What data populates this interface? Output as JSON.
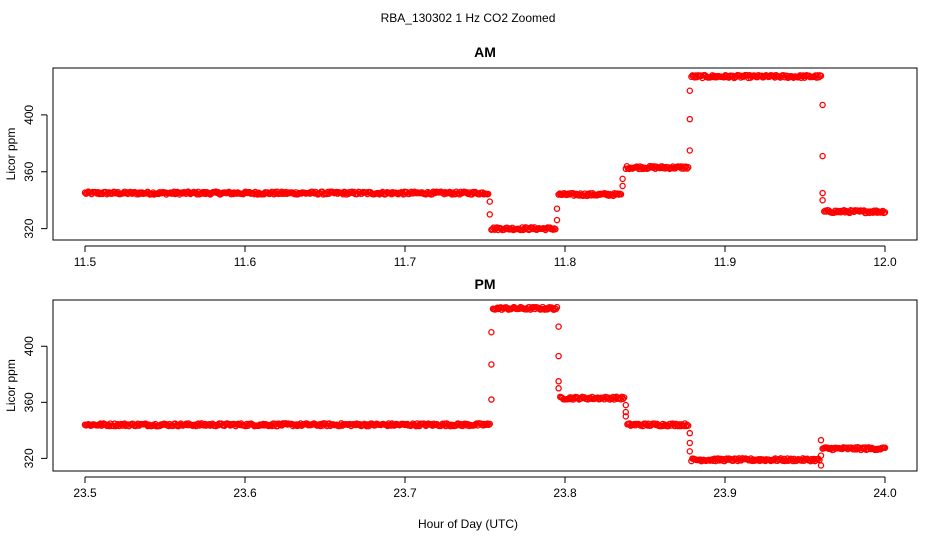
{
  "figure": {
    "title": "RBA_130302  1 Hz CO2 Zoomed",
    "xlabel": "Hour of Day (UTC)"
  },
  "chart_data": [
    {
      "type": "scatter",
      "title": "AM",
      "ylabel": "Licor ppm",
      "xlim": [
        11.48,
        12.02
      ],
      "ylim": [
        312,
        433
      ],
      "xticks": [
        11.5,
        11.6,
        11.7,
        11.8,
        11.9,
        12.0
      ],
      "xtick_labels": [
        "11.5",
        "11.6",
        "11.7",
        "11.8",
        "11.9",
        "12.0"
      ],
      "yticks": [
        320,
        360,
        400
      ],
      "ytick_labels": [
        "320",
        "360",
        "400"
      ],
      "color": "#ff0000",
      "marker": "open-circle",
      "grid": false,
      "segments": [
        {
          "x_start": 11.5,
          "x_end": 11.752,
          "y": 345
        },
        {
          "x_start": 11.754,
          "x_end": 11.794,
          "y": 320
        },
        {
          "x_start": 11.796,
          "x_end": 11.835,
          "y": 344
        },
        {
          "x_start": 11.838,
          "x_end": 11.877,
          "y": 363
        },
        {
          "x_start": 11.879,
          "x_end": 11.96,
          "y": 427
        },
        {
          "x_start": 11.962,
          "x_end": 12.0,
          "y": 332
        }
      ],
      "transitions": [
        {
          "x": 11.753,
          "y": [
            339,
            330
          ]
        },
        {
          "x": 11.795,
          "y": [
            326,
            334
          ]
        },
        {
          "x": 11.836,
          "y": [
            350,
            355
          ]
        },
        {
          "x": 11.878,
          "y": [
            375,
            397,
            417
          ]
        },
        {
          "x": 11.961,
          "y": [
            407,
            371,
            345,
            340
          ]
        }
      ]
    },
    {
      "type": "scatter",
      "title": "PM",
      "ylabel": "Licor ppm",
      "xlim": [
        23.48,
        24.02
      ],
      "ylim": [
        311,
        433
      ],
      "xticks": [
        23.5,
        23.6,
        23.7,
        23.8,
        23.9,
        24.0
      ],
      "xtick_labels": [
        "23.5",
        "23.6",
        "23.7",
        "23.8",
        "23.9",
        "24.0"
      ],
      "yticks": [
        320,
        360,
        400
      ],
      "ytick_labels": [
        "320",
        "360",
        "400"
      ],
      "color": "#ff0000",
      "marker": "open-circle",
      "grid": false,
      "segments": [
        {
          "x_start": 23.5,
          "x_end": 23.753,
          "y": 344
        },
        {
          "x_start": 23.755,
          "x_end": 23.795,
          "y": 427
        },
        {
          "x_start": 23.797,
          "x_end": 23.837,
          "y": 363
        },
        {
          "x_start": 23.839,
          "x_end": 23.877,
          "y": 344
        },
        {
          "x_start": 23.879,
          "x_end": 23.959,
          "y": 319
        },
        {
          "x_start": 23.961,
          "x_end": 24.0,
          "y": 327
        }
      ],
      "transitions": [
        {
          "x": 23.754,
          "y": [
            362,
            387,
            410
          ]
        },
        {
          "x": 23.796,
          "y": [
            414,
            393,
            375,
            370
          ]
        },
        {
          "x": 23.838,
          "y": [
            358,
            353,
            350
          ]
        },
        {
          "x": 23.878,
          "y": [
            338,
            331,
            325
          ]
        },
        {
          "x": 23.96,
          "y": [
            315,
            322,
            333
          ]
        }
      ]
    }
  ]
}
